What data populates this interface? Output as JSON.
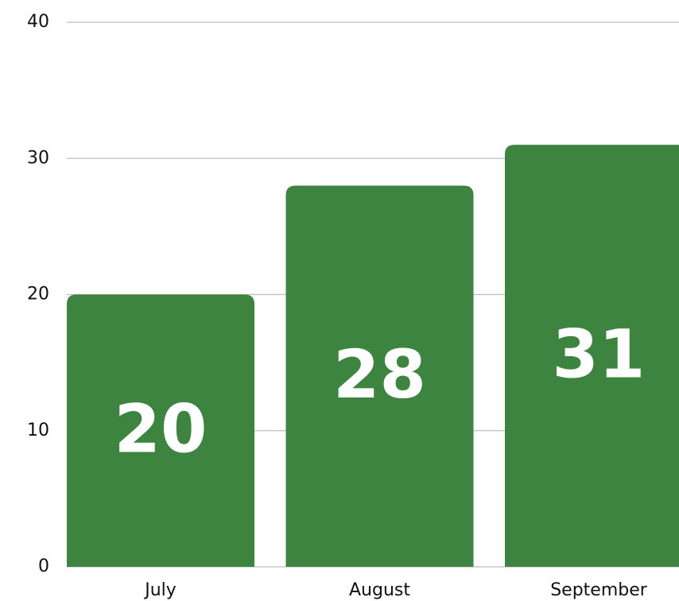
{
  "chart_data": {
    "type": "bar",
    "categories": [
      "July",
      "August",
      "September"
    ],
    "values": [
      20,
      28,
      31
    ],
    "color": "#3e8441",
    "ylim": [
      0,
      40
    ],
    "yticks": [
      0,
      10,
      20,
      30,
      40
    ],
    "grid": true
  }
}
